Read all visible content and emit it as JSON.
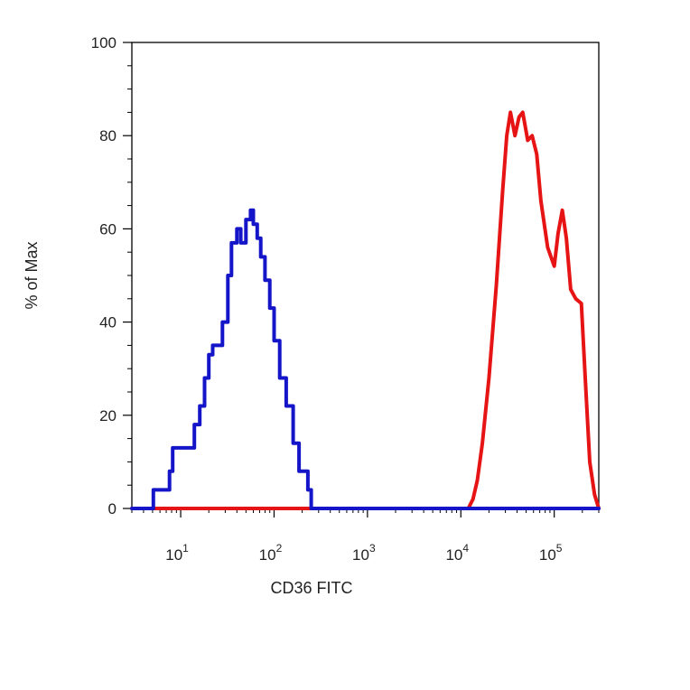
{
  "chart_data": {
    "type": "line",
    "title": "",
    "xlabel": "CD36 FITC",
    "ylabel": "% of Max",
    "xscale": "log",
    "xlim": [
      3,
      300000
    ],
    "ylim": [
      0,
      100
    ],
    "grid": false,
    "legend": "none",
    "y_ticks": [
      "0",
      "20",
      "40",
      "60",
      "80",
      "100"
    ],
    "x_ticks": [
      {
        "base": "10",
        "exp": "1"
      },
      {
        "base": "10",
        "exp": "2"
      },
      {
        "base": "10",
        "exp": "3"
      },
      {
        "base": "10",
        "exp": "4"
      },
      {
        "base": "10",
        "exp": "5"
      }
    ],
    "series": [
      {
        "color": "#1414c8",
        "style": "step",
        "points": [
          [
            3,
            0
          ],
          [
            4.8,
            0
          ],
          [
            5.1,
            4
          ],
          [
            7.1,
            4
          ],
          [
            7.6,
            8
          ],
          [
            8.2,
            13
          ],
          [
            13,
            13
          ],
          [
            14,
            18
          ],
          [
            16,
            22
          ],
          [
            18,
            28
          ],
          [
            20,
            33
          ],
          [
            22,
            35
          ],
          [
            28,
            40
          ],
          [
            32,
            50
          ],
          [
            35,
            57
          ],
          [
            40,
            60
          ],
          [
            44,
            57
          ],
          [
            50,
            62
          ],
          [
            56,
            64
          ],
          [
            60,
            61
          ],
          [
            66,
            58
          ],
          [
            72,
            54
          ],
          [
            80,
            49
          ],
          [
            90,
            43
          ],
          [
            100,
            36
          ],
          [
            115,
            28
          ],
          [
            135,
            22
          ],
          [
            160,
            14
          ],
          [
            185,
            8
          ],
          [
            230,
            4
          ],
          [
            250,
            0
          ],
          [
            300000,
            0
          ]
        ]
      },
      {
        "color": "#e61414",
        "style": "smooth",
        "points": [
          [
            3,
            0
          ],
          [
            12000,
            0
          ],
          [
            13500,
            2
          ],
          [
            15000,
            6
          ],
          [
            17000,
            14
          ],
          [
            20000,
            28
          ],
          [
            24000,
            48
          ],
          [
            28000,
            68
          ],
          [
            31000,
            80
          ],
          [
            34000,
            85
          ],
          [
            38000,
            80
          ],
          [
            42000,
            84
          ],
          [
            46000,
            85
          ],
          [
            52000,
            79
          ],
          [
            58000,
            80
          ],
          [
            65000,
            76
          ],
          [
            72000,
            66
          ],
          [
            85000,
            56
          ],
          [
            100000,
            52
          ],
          [
            110000,
            59
          ],
          [
            122000,
            64
          ],
          [
            135000,
            58
          ],
          [
            150000,
            47
          ],
          [
            170000,
            45
          ],
          [
            195000,
            44
          ],
          [
            215000,
            28
          ],
          [
            240000,
            10
          ],
          [
            270000,
            3
          ],
          [
            300000,
            0
          ]
        ]
      }
    ]
  }
}
